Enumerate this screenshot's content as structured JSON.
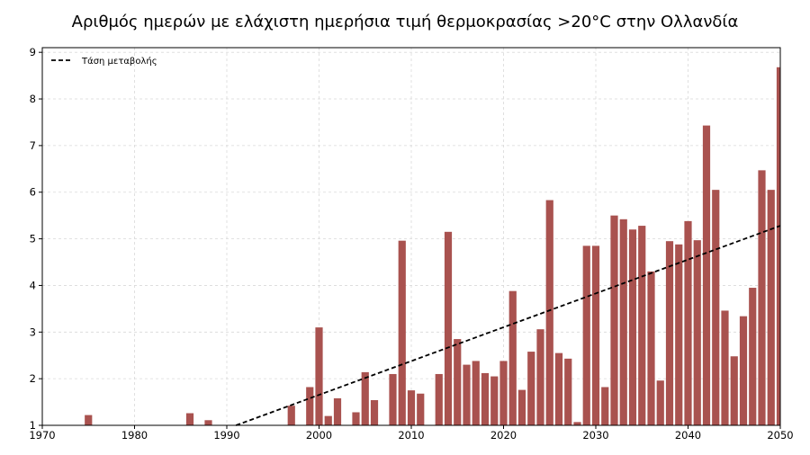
{
  "chart_data": {
    "type": "bar",
    "title": "Αριθμός ημερών με ελάχιστη ημερήσια τιμή θερμοκρασίας >20°C στην Ολλανδία",
    "xlabel": "",
    "ylabel": "",
    "xlim": [
      1970,
      2050
    ],
    "ylim": [
      1,
      9.1
    ],
    "baseline": 1,
    "xticks": [
      1970,
      1980,
      1990,
      2000,
      2010,
      2020,
      2030,
      2040,
      2050
    ],
    "yticks": [
      1,
      2,
      3,
      4,
      5,
      6,
      7,
      8,
      9
    ],
    "grid": true,
    "bar_color": "#a9524f",
    "trend_color": "#000000",
    "legend_position": "top-left",
    "series": [
      {
        "name": "",
        "x": [
          1975,
          1986,
          1988,
          1997,
          1999,
          2000,
          2001,
          2002,
          2004,
          2005,
          2006,
          2008,
          2009,
          2010,
          2011,
          2013,
          2014,
          2015,
          2016,
          2017,
          2018,
          2019,
          2020,
          2021,
          2022,
          2023,
          2024,
          2025,
          2026,
          2027,
          2028,
          2029,
          2030,
          2031,
          2032,
          2033,
          2034,
          2035,
          2036,
          2037,
          2038,
          2039,
          2040,
          2041,
          2042,
          2043,
          2044,
          2045,
          2046,
          2047,
          2048,
          2049,
          2050
        ],
        "values": [
          1.22,
          1.26,
          1.11,
          1.42,
          1.82,
          3.1,
          1.2,
          1.58,
          1.28,
          2.14,
          1.54,
          2.1,
          4.96,
          1.75,
          1.68,
          2.1,
          5.15,
          2.85,
          2.3,
          2.38,
          2.12,
          2.05,
          2.38,
          3.88,
          1.76,
          2.58,
          3.06,
          5.83,
          2.55,
          2.43,
          1.07,
          4.85,
          4.85,
          1.82,
          5.5,
          5.42,
          5.2,
          5.28,
          4.3,
          1.96,
          4.95,
          4.88,
          5.38,
          4.97,
          7.43,
          6.05,
          3.46,
          2.48,
          3.34,
          3.95,
          6.47,
          6.05,
          8.68
        ]
      },
      {
        "name": "Τάση μεταβολής",
        "type": "line",
        "style": "dashed",
        "x": [
          1991,
          2050
        ],
        "values": [
          1.0,
          5.28
        ]
      }
    ]
  }
}
